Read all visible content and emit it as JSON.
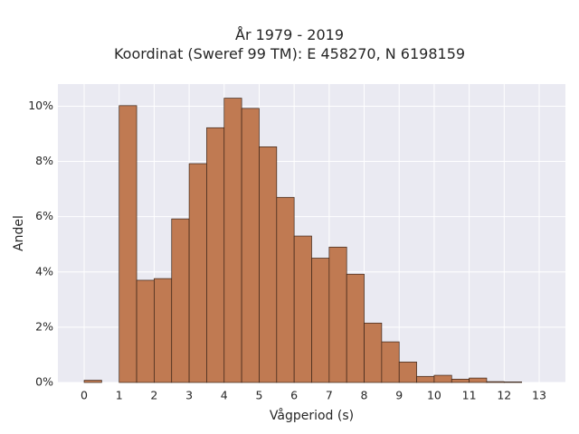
{
  "chart_data": {
    "type": "bar",
    "title": "År 1979 - 2019",
    "subtitle": "Koordinat (Sweref 99 TM): E 458270, N 6198159",
    "xlabel": "Vågperiod (s)",
    "ylabel": "Andel",
    "bin_width": 0.5,
    "xlim": [
      -0.75,
      13.75
    ],
    "ylim": [
      0,
      10.8
    ],
    "x_ticks": [
      0,
      1,
      2,
      3,
      4,
      5,
      6,
      7,
      8,
      9,
      10,
      11,
      12,
      13
    ],
    "y_ticks": [
      0,
      2,
      4,
      6,
      8,
      10
    ],
    "y_tick_labels": [
      "0%",
      "2%",
      "4%",
      "6%",
      "8%",
      "10%"
    ],
    "bins": [
      {
        "x0": 0.0,
        "value": 0.08
      },
      {
        "x0": 0.5,
        "value": 0.0
      },
      {
        "x0": 1.0,
        "value": 10.02
      },
      {
        "x0": 1.5,
        "value": 3.7
      },
      {
        "x0": 2.0,
        "value": 3.76
      },
      {
        "x0": 2.5,
        "value": 5.92
      },
      {
        "x0": 3.0,
        "value": 7.92
      },
      {
        "x0": 3.5,
        "value": 9.22
      },
      {
        "x0": 4.0,
        "value": 10.29
      },
      {
        "x0": 4.5,
        "value": 9.92
      },
      {
        "x0": 5.0,
        "value": 8.53
      },
      {
        "x0": 5.5,
        "value": 6.7
      },
      {
        "x0": 6.0,
        "value": 5.3
      },
      {
        "x0": 6.5,
        "value": 4.5
      },
      {
        "x0": 7.0,
        "value": 4.9
      },
      {
        "x0": 7.5,
        "value": 3.92
      },
      {
        "x0": 8.0,
        "value": 2.15
      },
      {
        "x0": 8.5,
        "value": 1.47
      },
      {
        "x0": 9.0,
        "value": 0.74
      },
      {
        "x0": 9.5,
        "value": 0.22
      },
      {
        "x0": 10.0,
        "value": 0.26
      },
      {
        "x0": 10.5,
        "value": 0.12
      },
      {
        "x0": 11.0,
        "value": 0.16
      },
      {
        "x0": 11.5,
        "value": 0.03
      },
      {
        "x0": 12.0,
        "value": 0.02
      }
    ],
    "grid": true,
    "colors": {
      "bar_fill": "#c07a52",
      "bar_edge": "#3a2418",
      "plot_bg": "#eaeaf2",
      "grid": "#ffffff"
    }
  }
}
